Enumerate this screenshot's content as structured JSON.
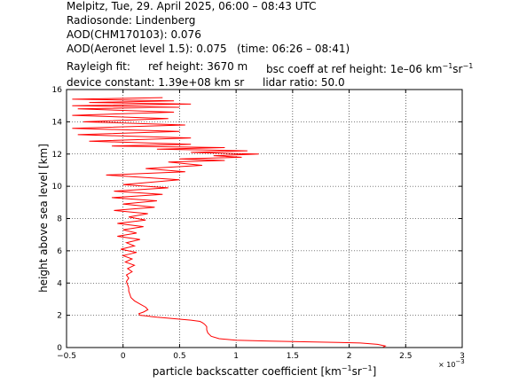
{
  "header": {
    "line1": "Melpitz, Tue, 29. April 2025, 06:00 – 08:43 UTC",
    "line2": "Radiosonde: Lindenberg",
    "line3": "AOD(CHM170103): 0.076",
    "line4": "AOD(Aeronet level 1.5): 0.075   (time: 06:26 – 08:41)",
    "rayleigh_label": "Rayleigh fit:",
    "ref_height": "ref height: 3670 m",
    "bsc_coeff_prefix": "bsc coeff at ref height: 1e–06 km",
    "device_constant": "device constant: 1.39e+08 km sr",
    "lidar_ratio": "lidar ratio: 50.0"
  },
  "chart_data": {
    "type": "line",
    "xlabel": "particle backscatter coefficient [km⁻¹sr⁻¹]",
    "xlabel_parts": [
      "particle backscatter coefficient [km",
      "−1",
      "sr",
      "−1",
      "]"
    ],
    "ylabel": "height above sea level [km]",
    "x_multiplier": "× 10",
    "x_multiplier_exp": "−3",
    "xlim": [
      -0.5,
      3
    ],
    "ylim": [
      0,
      16
    ],
    "xticks": [
      -0.5,
      0,
      0.5,
      1,
      1.5,
      2,
      2.5,
      3
    ],
    "xtick_labels": [
      "−0.5",
      "0",
      "0.5",
      "1",
      "1.5",
      "2",
      "2.5",
      "3"
    ],
    "yticks": [
      0,
      2,
      4,
      6,
      8,
      10,
      12,
      14,
      16
    ],
    "ytick_labels": [
      "0",
      "2",
      "4",
      "6",
      "8",
      "10",
      "12",
      "14",
      "16"
    ],
    "grid": true,
    "series": [
      {
        "color": "#ff0000",
        "x": [
          2.3,
          2.32,
          2.25,
          2.1,
          1.9,
          1.6,
          1.3,
          1.0,
          0.85,
          0.78,
          0.75,
          0.74,
          0.74,
          0.72,
          0.7,
          0.68,
          0.6,
          0.5,
          0.4,
          0.3,
          0.25,
          0.22,
          0.18,
          0.15,
          0.14,
          0.18,
          0.22,
          0.2,
          0.15,
          0.1,
          0.07,
          0.06,
          0.05,
          0.05,
          0.04,
          0.03,
          0.05,
          0.03,
          0.08,
          0.04,
          0.1,
          0.02,
          0.08,
          0.0,
          0.12,
          -0.02,
          0.1,
          0.03,
          0.15,
          -0.05,
          0.12,
          0.0,
          0.18,
          -0.05,
          0.2,
          0.05,
          0.22,
          -0.08,
          0.28,
          0.0,
          0.3,
          -0.1,
          0.35,
          -0.08,
          0.4,
          0.0,
          0.5,
          -0.15,
          0.55,
          0.2,
          0.7,
          0.4,
          0.9,
          0.5,
          1.05,
          0.8,
          1.2,
          0.6,
          1.1,
          0.3,
          0.9,
          -0.1,
          0.6,
          -0.3,
          0.6,
          -0.4,
          0.5,
          -0.45,
          0.55,
          -0.35,
          0.4,
          -0.45,
          0.45,
          -0.4,
          0.5,
          -0.45,
          0.6,
          -0.3,
          0.45,
          -0.45,
          0.35
        ],
        "y": [
          0.02,
          0.1,
          0.2,
          0.28,
          0.32,
          0.36,
          0.4,
          0.45,
          0.55,
          0.7,
          0.9,
          1.1,
          1.3,
          1.45,
          1.55,
          1.62,
          1.7,
          1.76,
          1.82,
          1.88,
          1.92,
          1.95,
          1.98,
          2.0,
          2.1,
          2.2,
          2.35,
          2.5,
          2.7,
          2.9,
          3.1,
          3.3,
          3.5,
          3.7,
          3.9,
          4.1,
          4.3,
          4.5,
          4.7,
          4.9,
          5.1,
          5.3,
          5.5,
          5.7,
          5.9,
          6.1,
          6.3,
          6.5,
          6.7,
          6.9,
          7.1,
          7.3,
          7.5,
          7.7,
          7.9,
          8.1,
          8.3,
          8.5,
          8.7,
          8.9,
          9.1,
          9.3,
          9.5,
          9.7,
          9.9,
          10.1,
          10.4,
          10.7,
          10.9,
          11.1,
          11.3,
          11.5,
          11.6,
          11.7,
          11.8,
          11.9,
          12.0,
          12.1,
          12.2,
          12.3,
          12.4,
          12.5,
          12.6,
          12.8,
          13.0,
          13.2,
          13.4,
          13.6,
          13.8,
          14.0,
          14.2,
          14.4,
          14.6,
          14.8,
          14.9,
          15.0,
          15.1,
          15.2,
          15.3,
          15.4,
          15.5
        ]
      }
    ]
  }
}
